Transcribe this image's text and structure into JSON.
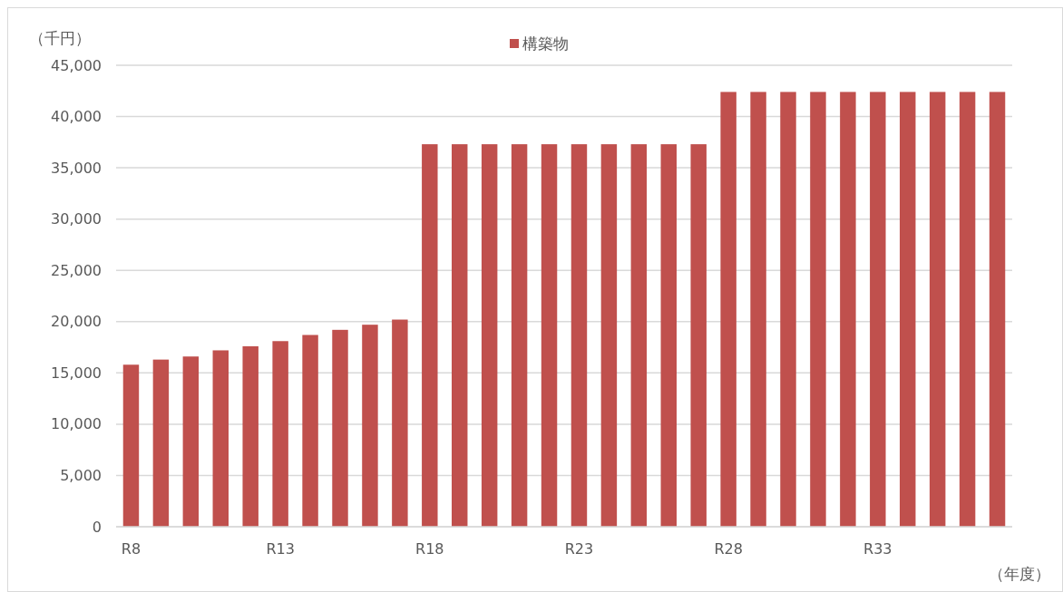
{
  "chart_data": {
    "type": "bar",
    "ylabel": "（千円）",
    "xlabel": "（年度）",
    "categories": [
      "R8",
      null,
      null,
      null,
      null,
      "R13",
      null,
      null,
      null,
      null,
      "R18",
      null,
      null,
      null,
      null,
      "R23",
      null,
      null,
      null,
      null,
      "R28",
      null,
      null,
      null,
      null,
      "R33",
      null,
      null,
      null,
      null
    ],
    "series": [
      {
        "name": "構築物",
        "color": "#c0504d",
        "values": [
          15800,
          16300,
          16600,
          17200,
          17600,
          18100,
          18700,
          19200,
          19700,
          20200,
          37300,
          37300,
          37300,
          37300,
          37300,
          37300,
          37300,
          37300,
          37300,
          37300,
          42400,
          42400,
          42400,
          42400,
          42400,
          42400,
          42400,
          42400,
          42400,
          42400
        ]
      }
    ],
    "ylim": [
      0,
      45000
    ],
    "yticks": [
      {
        "value": 0,
        "label": "0"
      },
      {
        "value": 5000,
        "label": "5,000"
      },
      {
        "value": 10000,
        "label": "10,000"
      },
      {
        "value": 15000,
        "label": "15,000"
      },
      {
        "value": 20000,
        "label": "20,000"
      },
      {
        "value": 25000,
        "label": "25,000"
      },
      {
        "value": 30000,
        "label": "30,000"
      },
      {
        "value": 35000,
        "label": "35,000"
      },
      {
        "value": 40000,
        "label": "40,000"
      },
      {
        "value": 45000,
        "label": "45,000"
      }
    ],
    "grid": "y",
    "legend": "top"
  }
}
